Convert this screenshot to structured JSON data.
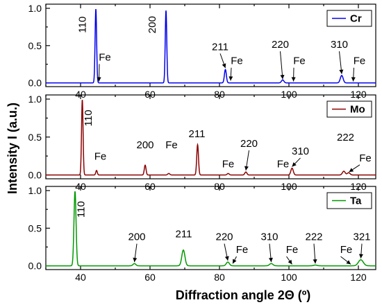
{
  "chart_data": [
    {
      "type": "line",
      "panel": "Cr",
      "color": "#0000ee",
      "legend": "Cr",
      "legend_placement": "top-right",
      "xlim": [
        30,
        125
      ],
      "ylim": [
        -0.05,
        1.0
      ],
      "yticks": [
        "0.0",
        "0.5",
        "1.0"
      ],
      "x_tick_labels": [
        "40",
        "60",
        "80",
        "100",
        "120"
      ],
      "baseline": 0.0,
      "peaks": [
        {
          "x": 44.4,
          "y": 0.99,
          "w": 0.22
        },
        {
          "x": 64.6,
          "y": 0.97,
          "w": 0.22
        },
        {
          "x": 81.7,
          "y": 0.18,
          "w": 0.28
        },
        {
          "x": 98.2,
          "y": 0.04,
          "w": 0.35
        },
        {
          "x": 115.2,
          "y": 0.1,
          "w": 0.4
        }
      ],
      "annotations": [
        {
          "text": "110",
          "x": 41.5,
          "y": 0.78,
          "rotated": true
        },
        {
          "text": "200",
          "x": 61.6,
          "y": 0.78,
          "rotated": true
        },
        {
          "text": "Fe",
          "x": 47.0,
          "y": 0.3,
          "arrow": [
            45.3,
            0.02
          ]
        },
        {
          "text": "211",
          "x": 80.2,
          "y": 0.44,
          "arrow": [
            81.7,
            0.2
          ]
        },
        {
          "text": "Fe",
          "x": 85.0,
          "y": 0.25,
          "arrow": [
            83.2,
            0.03
          ]
        },
        {
          "text": "220",
          "x": 97.5,
          "y": 0.47,
          "arrow": [
            98.2,
            0.05
          ]
        },
        {
          "text": "Fe",
          "x": 103.0,
          "y": 0.25,
          "arrow": [
            101.3,
            0.02
          ]
        },
        {
          "text": "310",
          "x": 114.5,
          "y": 0.47,
          "arrow": [
            115.2,
            0.12
          ]
        },
        {
          "text": "Fe",
          "x": 120.3,
          "y": 0.25,
          "arrow": [
            118.5,
            0.02
          ]
        }
      ]
    },
    {
      "type": "line",
      "panel": "Mo",
      "color": "#8b0000",
      "legend": "Mo",
      "legend_placement": "top-right",
      "xlim": [
        30,
        125
      ],
      "ylim": [
        -0.05,
        1.0
      ],
      "yticks": [
        "0.0",
        "0.5",
        "1.0"
      ],
      "x_tick_labels": [
        "40",
        "60",
        "80",
        "100",
        "120"
      ],
      "baseline": 0.0,
      "peaks": [
        {
          "x": 40.5,
          "y": 0.99,
          "w": 0.22
        },
        {
          "x": 44.6,
          "y": 0.06,
          "w": 0.22
        },
        {
          "x": 58.6,
          "y": 0.13,
          "w": 0.25
        },
        {
          "x": 65.4,
          "y": 0.02,
          "w": 0.3
        },
        {
          "x": 73.7,
          "y": 0.4,
          "w": 0.25
        },
        {
          "x": 82.5,
          "y": 0.02,
          "w": 0.3
        },
        {
          "x": 87.6,
          "y": 0.04,
          "w": 0.3
        },
        {
          "x": 100.9,
          "y": 0.09,
          "w": 0.35
        },
        {
          "x": 115.8,
          "y": 0.05,
          "w": 0.4
        },
        {
          "x": 117.2,
          "y": 0.03,
          "w": 0.4
        }
      ],
      "annotations": [
        {
          "text": "110",
          "x": 43.2,
          "y": 0.75,
          "rotated": true
        },
        {
          "text": "Fe",
          "x": 45.7,
          "y": 0.2
        },
        {
          "text": "200",
          "x": 58.6,
          "y": 0.35
        },
        {
          "text": "Fe",
          "x": 66.2,
          "y": 0.35
        },
        {
          "text": "211",
          "x": 73.5,
          "y": 0.5
        },
        {
          "text": "Fe",
          "x": 82.5,
          "y": 0.1
        },
        {
          "text": "220",
          "x": 88.5,
          "y": 0.37,
          "arrow": [
            87.6,
            0.06
          ]
        },
        {
          "text": "Fe",
          "x": 98.3,
          "y": 0.1
        },
        {
          "text": "310",
          "x": 103.3,
          "y": 0.27,
          "arrow": [
            100.9,
            0.11
          ]
        },
        {
          "text": "222",
          "x": 116.3,
          "y": 0.45
        },
        {
          "text": "Fe",
          "x": 122.0,
          "y": 0.18,
          "arrow": [
            117.3,
            0.04
          ]
        }
      ]
    },
    {
      "type": "line",
      "panel": "Ta",
      "color": "#009900",
      "legend": "Ta",
      "legend_placement": "top-right",
      "xlim": [
        30,
        125
      ],
      "ylim": [
        -0.05,
        1.0
      ],
      "yticks": [
        "0.0",
        "0.5",
        "1.0"
      ],
      "x_tick_labels": [
        "40",
        "60",
        "80",
        "100",
        "120"
      ],
      "baseline": 0.0,
      "peaks": [
        {
          "x": 38.4,
          "y": 0.99,
          "w": 0.3
        },
        {
          "x": 55.5,
          "y": 0.03,
          "w": 0.4
        },
        {
          "x": 69.6,
          "y": 0.21,
          "w": 0.45
        },
        {
          "x": 82.4,
          "y": 0.05,
          "w": 0.45
        },
        {
          "x": 94.9,
          "y": 0.03,
          "w": 0.5
        },
        {
          "x": 107.6,
          "y": 0.01,
          "w": 0.5
        },
        {
          "x": 120.7,
          "y": 0.08,
          "w": 0.7
        }
      ],
      "annotations": [
        {
          "text": "110",
          "x": 41.1,
          "y": 0.75,
          "rotated": true
        },
        {
          "text": "200",
          "x": 56.2,
          "y": 0.34,
          "arrow": [
            55.5,
            0.05
          ]
        },
        {
          "text": "211",
          "x": 69.7,
          "y": 0.38
        },
        {
          "text": "220",
          "x": 81.4,
          "y": 0.34,
          "arrow": [
            82.4,
            0.07
          ]
        },
        {
          "text": "Fe",
          "x": 86.5,
          "y": 0.17,
          "arrow": [
            83.8,
            0.03
          ]
        },
        {
          "text": "310",
          "x": 94.4,
          "y": 0.34,
          "arrow": [
            94.9,
            0.05
          ]
        },
        {
          "text": "Fe",
          "x": 100.9,
          "y": 0.17,
          "arrow": [
            100.9,
            0.02
          ]
        },
        {
          "text": "222",
          "x": 107.2,
          "y": 0.34,
          "arrow": [
            107.6,
            0.03
          ]
        },
        {
          "text": "Fe",
          "x": 116.5,
          "y": 0.17,
          "arrow": [
            117.8,
            0.02
          ]
        },
        {
          "text": "321",
          "x": 121.0,
          "y": 0.34,
          "arrow": [
            120.7,
            0.1
          ]
        }
      ]
    }
  ],
  "xlabel": "Diffraction angle 2Θ (º)",
  "ylabel": "Intensity I (a.u.)"
}
